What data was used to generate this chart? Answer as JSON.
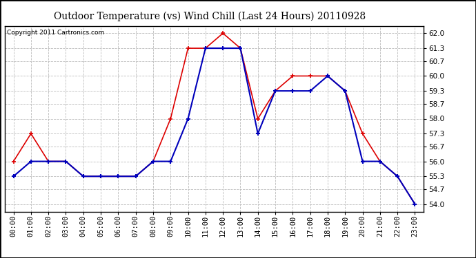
{
  "title": "Outdoor Temperature (vs) Wind Chill (Last 24 Hours) 20110928",
  "copyright": "Copyright 2011 Cartronics.com",
  "x_labels": [
    "00:00",
    "01:00",
    "02:00",
    "03:00",
    "04:00",
    "05:00",
    "06:00",
    "07:00",
    "08:00",
    "09:00",
    "10:00",
    "11:00",
    "12:00",
    "13:00",
    "14:00",
    "15:00",
    "16:00",
    "17:00",
    "18:00",
    "19:00",
    "20:00",
    "21:00",
    "22:00",
    "23:00"
  ],
  "temp_red": [
    56.0,
    57.3,
    56.0,
    56.0,
    55.3,
    55.3,
    55.3,
    55.3,
    56.0,
    58.0,
    61.3,
    61.3,
    62.0,
    61.3,
    58.0,
    59.3,
    60.0,
    60.0,
    60.0,
    59.3,
    57.3,
    56.0,
    55.3,
    54.0
  ],
  "wind_blue": [
    55.3,
    56.0,
    56.0,
    56.0,
    55.3,
    55.3,
    55.3,
    55.3,
    56.0,
    56.0,
    58.0,
    61.3,
    61.3,
    61.3,
    57.3,
    59.3,
    59.3,
    59.3,
    60.0,
    59.3,
    56.0,
    56.0,
    55.3,
    54.0
  ],
  "y_ticks": [
    54.0,
    54.7,
    55.3,
    56.0,
    56.7,
    57.3,
    58.0,
    58.7,
    59.3,
    60.0,
    60.7,
    61.3,
    62.0
  ],
  "ylim_min": 53.65,
  "ylim_max": 62.35,
  "bg_color": "#ffffff",
  "plot_bg": "#ffffff",
  "grid_color": "#bbbbbb",
  "red_color": "#dd0000",
  "blue_color": "#0000bb",
  "title_fontsize": 10,
  "copyright_fontsize": 6.5,
  "tick_fontsize": 7.5
}
